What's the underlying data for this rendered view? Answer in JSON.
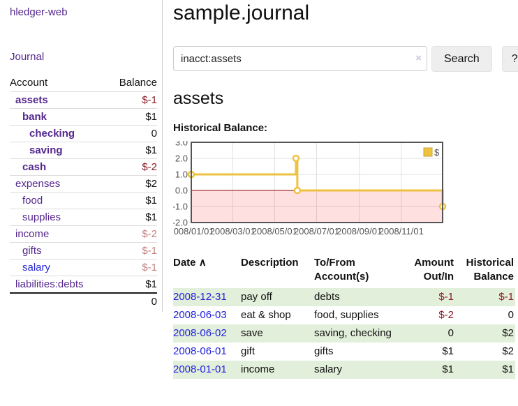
{
  "app": {
    "title": "hledger-web"
  },
  "sidebar": {
    "nav_journal": "Journal",
    "headers": {
      "account": "Account",
      "balance": "Balance"
    },
    "accounts": [
      {
        "account": "assets",
        "balance": "$-1",
        "level": 1,
        "bold": true,
        "neg": "strong"
      },
      {
        "account": "bank",
        "balance": "$1",
        "level": 2,
        "bold": true
      },
      {
        "account": "checking",
        "balance": "0",
        "level": 3,
        "bold": true
      },
      {
        "account": "saving",
        "balance": "$1",
        "level": 3,
        "bold": true
      },
      {
        "account": "cash",
        "balance": "$-2",
        "level": 2,
        "bold": true,
        "neg": "strong"
      },
      {
        "account": "expenses",
        "balance": "$2",
        "level": 1
      },
      {
        "account": "food",
        "balance": "$1",
        "level": 2
      },
      {
        "account": "supplies",
        "balance": "$1",
        "level": 2
      },
      {
        "account": "income",
        "balance": "$-2",
        "level": 1,
        "neg": "soft"
      },
      {
        "account": "gifts",
        "balance": "$-1",
        "level": 2,
        "neg": "soft"
      },
      {
        "account": "salary",
        "balance": "$-1",
        "level": 2,
        "neg": "soft",
        "link": "blue"
      },
      {
        "account": "liabilities:debts",
        "balance": "$1",
        "level": 1
      }
    ],
    "total": "0"
  },
  "main": {
    "title": "sample.journal",
    "search": {
      "value": "inacct:assets",
      "clear_icon": "×",
      "button_label": "Search",
      "help_label": "?"
    },
    "account_heading": "assets",
    "chart_label": "Historical Balance:",
    "register": {
      "headers": {
        "date": "Date",
        "sort_icon": "∧",
        "description": "Description",
        "accounts": "To/From Account(s)",
        "amount": "Amount Out/In",
        "balance": "Historical Balance"
      },
      "rows": [
        {
          "date": "2008-12-31",
          "description": "pay off",
          "accounts": "debts",
          "amount": "$-1",
          "amount_negative": true,
          "balance": "$-1",
          "balance_negative": true
        },
        {
          "date": "2008-06-03",
          "description": "eat & shop",
          "accounts": "food, supplies",
          "amount": "$-2",
          "amount_negative": true,
          "balance": "0",
          "balance_negative": false
        },
        {
          "date": "2008-06-02",
          "description": "save",
          "accounts": "saving, checking",
          "amount": "0",
          "amount_negative": false,
          "balance": "$2",
          "balance_negative": false
        },
        {
          "date": "2008-06-01",
          "description": "gift",
          "accounts": "gifts",
          "amount": "$1",
          "amount_negative": false,
          "balance": "$2",
          "balance_negative": false
        },
        {
          "date": "2008-01-01",
          "description": "income",
          "accounts": "salary",
          "amount": "$1",
          "amount_negative": false,
          "balance": "$1",
          "balance_negative": false
        }
      ]
    }
  },
  "chart_data": {
    "type": "line",
    "step": true,
    "title": "Historical Balance:",
    "legend": "$",
    "legend_position": "top-right",
    "series": [
      {
        "name": "$",
        "color": "#edc240",
        "points": [
          [
            "2008-01-01",
            1
          ],
          [
            "2008-06-01",
            2
          ],
          [
            "2008-06-03",
            0
          ],
          [
            "2008-12-31",
            -1
          ]
        ]
      }
    ],
    "xrange": [
      "2008-01-01",
      "2008-12-31"
    ],
    "ylim": [
      -2,
      3
    ],
    "yticks": [
      3.0,
      2.0,
      1.0,
      0.0,
      -1.0,
      -2.0
    ],
    "xticks": [
      {
        "date": "2008-01-01",
        "label": "2008/01/01"
      },
      {
        "date": "2008-03-01",
        "label": "2008/03/01"
      },
      {
        "date": "2008-05-01",
        "label": "2008/05/01"
      },
      {
        "date": "2008-07-01",
        "label": "2008/07/01"
      },
      {
        "date": "2008-09-01",
        "label": "2008/09/01"
      },
      {
        "date": "2008-11-01",
        "label": "2008/11/01"
      }
    ],
    "grid": true,
    "colors": {
      "grid": "#e0e0e0",
      "plot_border": "#545454",
      "tick_text": "#545454",
      "zero_line": "#8b0000",
      "negative_region": "rgba(255,0,0,0.12)",
      "marker_fill": "#ffffff",
      "legend_box": "#edc240"
    }
  }
}
